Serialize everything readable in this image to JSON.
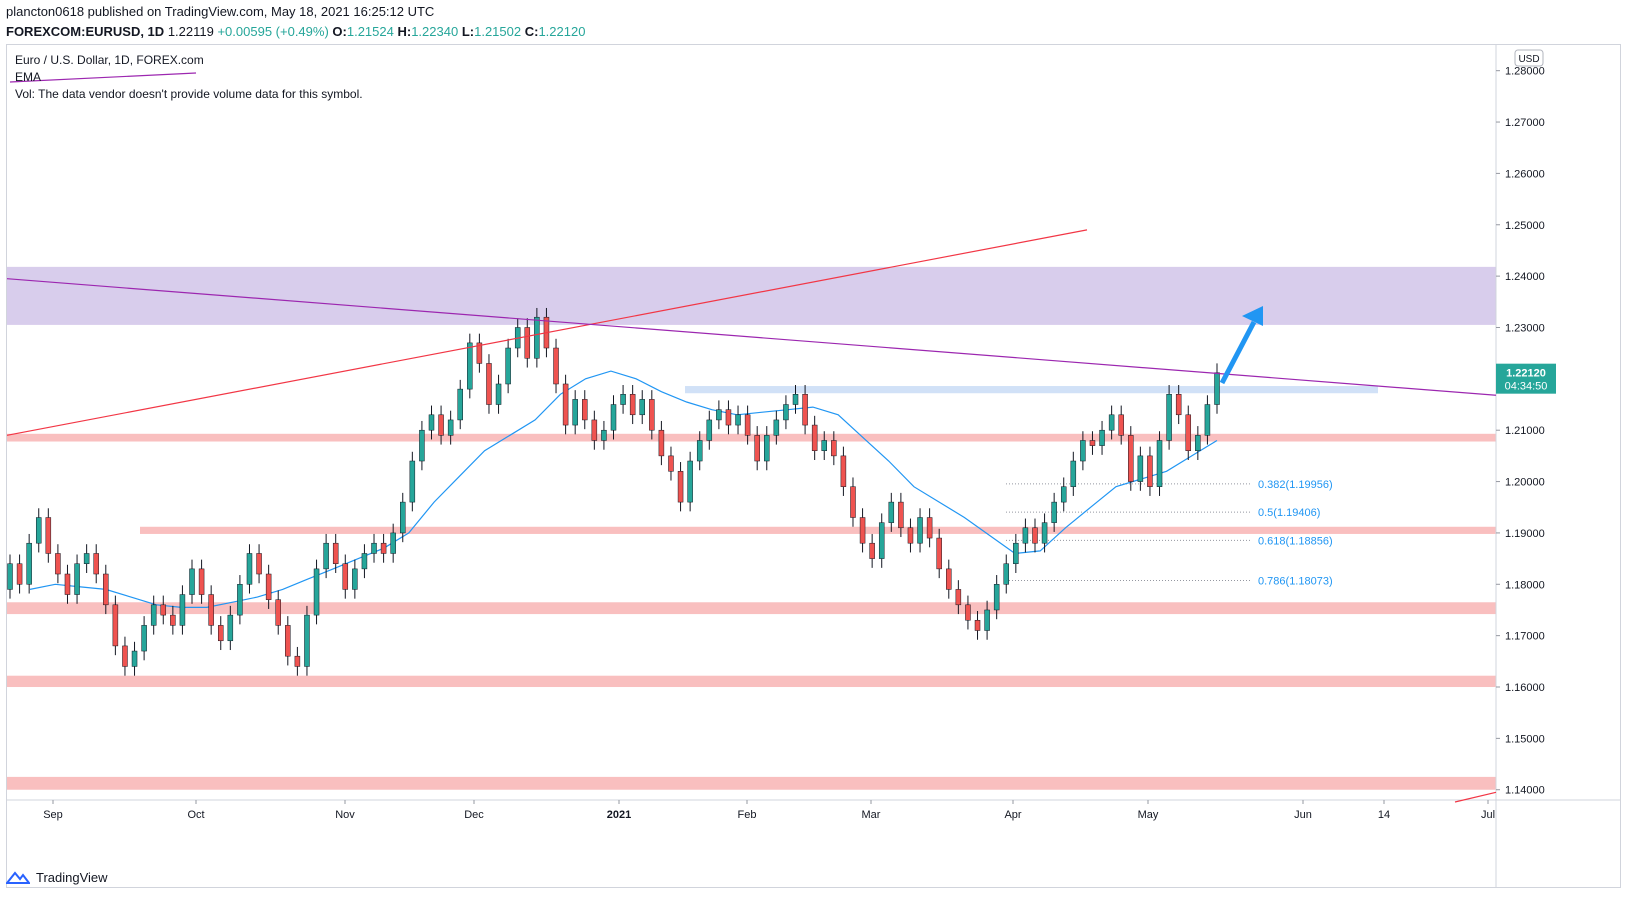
{
  "header": {
    "line1": "plancton0618 published on TradingView.com, May 18, 2021 16:25:12 UTC",
    "symbol": "FOREXCOM:EURUSD, 1D",
    "last": "1.22119",
    "change": "+0.00595 (+0.49%)",
    "o_label": "O:",
    "o": "1.21524",
    "h_label": "H:",
    "h": "1.22340",
    "l_label": "L:",
    "l": "1.21502",
    "c_label": "C:",
    "c": "1.22120"
  },
  "legend": {
    "title": "Euro / U.S. Dollar, 1D, FOREX.com",
    "ema": "EMA",
    "vol": "Vol: The data vendor doesn't provide volume data for this symbol."
  },
  "footer": {
    "brand": "TradingView"
  },
  "chart_data": {
    "type": "candlestick",
    "currency": "USD",
    "price_label": "1.22120",
    "countdown": "04:34:50",
    "y_ticks": [
      "1.28000",
      "1.27000",
      "1.26000",
      "1.25000",
      "1.24000",
      "1.23000",
      "1.22000",
      "1.21000",
      "1.20000",
      "1.19000",
      "1.18000",
      "1.17000",
      "1.16000",
      "1.15000",
      "1.14000"
    ],
    "x_ticks": [
      "Sep",
      "Oct",
      "Nov",
      "Dec",
      "2021",
      "Feb",
      "Mar",
      "Apr",
      "May",
      "Jun",
      "14",
      "Jul"
    ],
    "fib_levels": [
      {
        "label": "0.382(1.19956)",
        "value": 1.19956
      },
      {
        "label": "0.5(1.19406)",
        "value": 1.19406
      },
      {
        "label": "0.618(1.18856)",
        "value": 1.18856
      },
      {
        "label": "0.786(1.18073)",
        "value": 1.18073
      }
    ],
    "zones": [
      {
        "from": 1.2305,
        "to": 1.2418,
        "color": "#d1c4e9"
      },
      {
        "from": 1.2078,
        "to": 1.2093,
        "color": "#f8b4b4"
      },
      {
        "from": 1.1898,
        "to": 1.1912,
        "color": "#f8b4b4"
      },
      {
        "from": 1.1742,
        "to": 1.1765,
        "color": "#f8b4b4"
      },
      {
        "from": 1.16,
        "to": 1.1622,
        "color": "#f8b4b4"
      },
      {
        "from": 1.14,
        "to": 1.1425,
        "color": "#f8b4b4"
      },
      {
        "from": 1.2172,
        "to": 1.2186,
        "color": "#c6d9f5"
      }
    ],
    "colors": {
      "up": "#26a69a",
      "down": "#ef5350",
      "ema": "#2196f3",
      "trend_red": "#f23645",
      "trend_purple": "#9c27b0",
      "arrow": "#2196f3"
    },
    "ema": [
      1.179,
      1.18,
      1.1795,
      1.179,
      1.1775,
      1.176,
      1.1755,
      1.1755,
      1.1765,
      1.1775,
      1.179,
      1.181,
      1.183,
      1.185,
      1.187,
      1.19,
      1.196,
      1.201,
      1.206,
      1.209,
      1.212,
      1.217,
      1.22,
      1.2215,
      1.22,
      1.2175,
      1.2155,
      1.214,
      1.213,
      1.2135,
      1.214,
      1.2145,
      1.213,
      1.2085,
      1.204,
      1.199,
      1.196,
      1.193,
      1.1895,
      1.186,
      1.1865,
      1.191,
      1.195,
      1.199,
      1.2005,
      1.202,
      1.205,
      1.208
    ],
    "candles": [
      [
        1.179,
        1.184
      ],
      [
        1.184,
        1.18
      ],
      [
        1.18,
        1.188
      ],
      [
        1.188,
        1.193
      ],
      [
        1.193,
        1.186
      ],
      [
        1.186,
        1.182
      ],
      [
        1.182,
        1.178
      ],
      [
        1.178,
        1.184
      ],
      [
        1.184,
        1.186
      ],
      [
        1.186,
        1.182
      ],
      [
        1.182,
        1.176
      ],
      [
        1.176,
        1.168
      ],
      [
        1.168,
        1.164
      ],
      [
        1.164,
        1.167
      ],
      [
        1.167,
        1.172
      ],
      [
        1.172,
        1.176
      ],
      [
        1.176,
        1.174
      ],
      [
        1.174,
        1.172
      ],
      [
        1.172,
        1.178
      ],
      [
        1.178,
        1.183
      ],
      [
        1.183,
        1.178
      ],
      [
        1.178,
        1.172
      ],
      [
        1.172,
        1.169
      ],
      [
        1.169,
        1.174
      ],
      [
        1.174,
        1.18
      ],
      [
        1.18,
        1.186
      ],
      [
        1.186,
        1.182
      ],
      [
        1.182,
        1.177
      ],
      [
        1.177,
        1.172
      ],
      [
        1.172,
        1.166
      ],
      [
        1.166,
        1.164
      ],
      [
        1.164,
        1.174
      ],
      [
        1.174,
        1.183
      ],
      [
        1.183,
        1.188
      ],
      [
        1.188,
        1.184
      ],
      [
        1.184,
        1.179
      ],
      [
        1.179,
        1.183
      ],
      [
        1.183,
        1.186
      ],
      [
        1.186,
        1.188
      ],
      [
        1.188,
        1.186
      ],
      [
        1.186,
        1.19
      ],
      [
        1.19,
        1.196
      ],
      [
        1.196,
        1.204
      ],
      [
        1.204,
        1.21
      ],
      [
        1.21,
        1.213
      ],
      [
        1.213,
        1.209
      ],
      [
        1.209,
        1.212
      ],
      [
        1.212,
        1.218
      ],
      [
        1.218,
        1.227
      ],
      [
        1.227,
        1.223
      ],
      [
        1.223,
        1.215
      ],
      [
        1.215,
        1.219
      ],
      [
        1.219,
        1.226
      ],
      [
        1.226,
        1.23
      ],
      [
        1.23,
        1.224
      ],
      [
        1.224,
        1.232
      ],
      [
        1.232,
        1.226
      ],
      [
        1.226,
        1.219
      ],
      [
        1.219,
        1.211
      ],
      [
        1.211,
        1.216
      ],
      [
        1.216,
        1.212
      ],
      [
        1.212,
        1.208
      ],
      [
        1.208,
        1.21
      ],
      [
        1.21,
        1.215
      ],
      [
        1.215,
        1.217
      ],
      [
        1.217,
        1.213
      ],
      [
        1.213,
        1.216
      ],
      [
        1.216,
        1.21
      ],
      [
        1.21,
        1.205
      ],
      [
        1.205,
        1.202
      ],
      [
        1.202,
        1.196
      ],
      [
        1.196,
        1.204
      ],
      [
        1.204,
        1.208
      ],
      [
        1.208,
        1.212
      ],
      [
        1.212,
        1.214
      ],
      [
        1.214,
        1.211
      ],
      [
        1.211,
        1.213
      ],
      [
        1.213,
        1.209
      ],
      [
        1.209,
        1.204
      ],
      [
        1.204,
        1.209
      ],
      [
        1.209,
        1.212
      ],
      [
        1.212,
        1.215
      ],
      [
        1.215,
        1.217
      ],
      [
        1.217,
        1.211
      ],
      [
        1.211,
        1.206
      ],
      [
        1.206,
        1.208
      ],
      [
        1.208,
        1.205
      ],
      [
        1.205,
        1.199
      ],
      [
        1.199,
        1.193
      ],
      [
        1.193,
        1.188
      ],
      [
        1.188,
        1.185
      ],
      [
        1.185,
        1.192
      ],
      [
        1.192,
        1.196
      ],
      [
        1.196,
        1.191
      ],
      [
        1.191,
        1.188
      ],
      [
        1.188,
        1.193
      ],
      [
        1.193,
        1.189
      ],
      [
        1.189,
        1.183
      ],
      [
        1.183,
        1.179
      ],
      [
        1.179,
        1.176
      ],
      [
        1.176,
        1.173
      ],
      [
        1.173,
        1.171
      ],
      [
        1.171,
        1.175
      ],
      [
        1.175,
        1.18
      ],
      [
        1.18,
        1.184
      ],
      [
        1.184,
        1.188
      ],
      [
        1.188,
        1.191
      ],
      [
        1.191,
        1.188
      ],
      [
        1.188,
        1.192
      ],
      [
        1.192,
        1.196
      ],
      [
        1.196,
        1.199
      ],
      [
        1.199,
        1.204
      ],
      [
        1.204,
        1.208
      ],
      [
        1.208,
        1.207
      ],
      [
        1.207,
        1.21
      ],
      [
        1.21,
        1.213
      ],
      [
        1.213,
        1.209
      ],
      [
        1.209,
        1.2
      ],
      [
        1.2,
        1.205
      ],
      [
        1.205,
        1.199
      ],
      [
        1.199,
        1.208
      ],
      [
        1.208,
        1.217
      ],
      [
        1.217,
        1.213
      ],
      [
        1.213,
        1.206
      ],
      [
        1.206,
        1.209
      ],
      [
        1.209,
        1.215
      ],
      [
        1.215,
        1.2212
      ]
    ],
    "trendlines": [
      {
        "name": "red",
        "from": [
          0,
          1.209
        ],
        "to": [
          1080,
          1.249
        ]
      },
      {
        "name": "purple",
        "from": [
          0,
          1.2395
        ],
        "to": [
          1490,
          1.2168
        ]
      },
      {
        "name": "red-bottom",
        "from": [
          1455,
          1.138
        ],
        "to": [
          1490,
          1.1395
        ]
      }
    ]
  }
}
